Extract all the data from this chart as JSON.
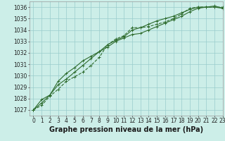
{
  "xlabel": "Graphe pression niveau de la mer (hPa)",
  "xlim": [
    -0.5,
    23
  ],
  "ylim": [
    1026.5,
    1036.5
  ],
  "yticks": [
    1027,
    1028,
    1029,
    1030,
    1031,
    1032,
    1033,
    1034,
    1035,
    1036
  ],
  "xticks": [
    0,
    1,
    2,
    3,
    4,
    5,
    6,
    7,
    8,
    9,
    10,
    11,
    12,
    13,
    14,
    15,
    16,
    17,
    18,
    19,
    20,
    21,
    22,
    23
  ],
  "background_color": "#cceee8",
  "grid_color": "#99cccc",
  "line_color": "#2d6b2d",
  "line1": [
    1027.0,
    1027.4,
    1028.2,
    1028.8,
    1029.5,
    1029.9,
    1030.3,
    1030.9,
    1031.6,
    1032.7,
    1033.2,
    1033.5,
    1034.2,
    1034.2,
    1034.3,
    1034.5,
    1034.7,
    1035.0,
    1035.4,
    1035.9,
    1036.0,
    1036.0,
    1036.0,
    1036.0
  ],
  "line2": [
    1027.0,
    1027.6,
    1028.3,
    1029.5,
    1030.2,
    1030.7,
    1031.3,
    1031.7,
    1032.1,
    1032.5,
    1033.0,
    1033.3,
    1033.6,
    1033.7,
    1034.0,
    1034.3,
    1034.6,
    1034.9,
    1035.2,
    1035.6,
    1035.9,
    1036.0,
    1036.1,
    1035.9
  ],
  "line3": [
    1027.0,
    1027.9,
    1028.3,
    1029.2,
    1029.7,
    1030.3,
    1030.9,
    1031.5,
    1032.1,
    1032.7,
    1033.1,
    1033.4,
    1034.0,
    1034.2,
    1034.5,
    1034.8,
    1035.0,
    1035.2,
    1035.5,
    1035.8,
    1036.0,
    1036.0,
    1036.0,
    1035.9
  ],
  "marker": "+",
  "markersize": 3,
  "linewidth": 0.8,
  "xlabel_fontsize": 7,
  "tick_fontsize": 5.5
}
